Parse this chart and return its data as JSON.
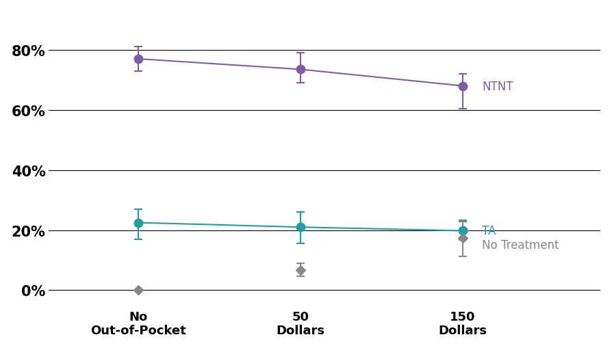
{
  "x_positions": [
    0,
    1,
    2
  ],
  "x_ticklabels": [
    "No\nOut-of-Pocket",
    "50\nDollars",
    "150\nDollars"
  ],
  "series": [
    {
      "label": "NTNT",
      "color": "#7B5EA7",
      "values": [
        0.77,
        0.735,
        0.68
      ],
      "yerr_lower": [
        0.04,
        0.045,
        0.075
      ],
      "yerr_upper": [
        0.04,
        0.055,
        0.04
      ],
      "marker": "o",
      "markersize": 9,
      "linestyle": "-",
      "linewidth": 1.5
    },
    {
      "label": "TA",
      "color": "#1E9E9E",
      "values": [
        0.225,
        0.21,
        0.198
      ],
      "yerr_lower": [
        0.055,
        0.055,
        0.03
      ],
      "yerr_upper": [
        0.045,
        0.05,
        0.03
      ],
      "marker": "o",
      "markersize": 9,
      "linestyle": "-",
      "linewidth": 1.5
    },
    {
      "label": "No Treatment",
      "color": "#888888",
      "values": [
        0.001,
        0.068,
        0.173
      ],
      "yerr_lower": [
        0.001,
        0.022,
        0.06
      ],
      "yerr_upper": [
        0.001,
        0.022,
        0.06
      ],
      "marker": "D",
      "markersize": 7,
      "linestyle": "none",
      "linewidth": 0
    }
  ],
  "yticks": [
    0.0,
    0.2,
    0.4,
    0.6,
    0.8
  ],
  "ylim": [
    -0.055,
    0.93
  ],
  "xlim": [
    -0.55,
    2.85
  ],
  "figsize": [
    8.94,
    5.1
  ],
  "dpi": 100,
  "background_color": "#FFFFFF",
  "tick_fontsize": 13,
  "annotation_fontsize": 12,
  "annotation_offsets": {
    "NTNT": [
      0.12,
      0.0
    ],
    "TA": [
      0.12,
      0.0
    ],
    "No Treatment": [
      0.12,
      -0.022
    ]
  }
}
